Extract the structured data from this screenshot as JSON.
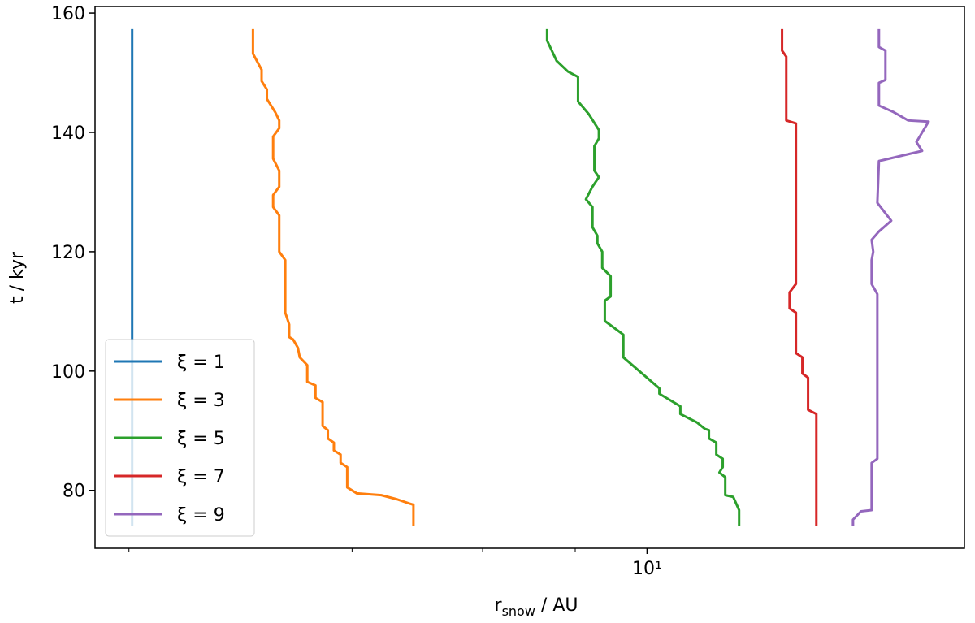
{
  "chart_data": {
    "type": "line",
    "xlabel": [
      "r",
      "snow",
      " / AU"
    ],
    "ylabel": "t / kyr",
    "xscale": "log",
    "xlim": [
      1.8,
      26.8
    ],
    "ylim": [
      70.3,
      161.1
    ],
    "xticks": [
      {
        "value": 10,
        "label": "10¹"
      }
    ],
    "xminorticks": [
      2,
      4,
      6,
      8
    ],
    "yticks": [
      80,
      100,
      120,
      140,
      160
    ],
    "legend": "lower left",
    "series": [
      {
        "name": "ξ = 1",
        "color": "#1f77b4",
        "x": [
          2.02,
          2.02
        ],
        "y": [
          74.0,
          157.3
        ]
      },
      {
        "name": "ξ = 3",
        "color": "#ff7f0e",
        "x": [
          2.94,
          2.94,
          3.02,
          3.02,
          3.07,
          3.07,
          3.15,
          3.19,
          3.19,
          3.13,
          3.13,
          3.19,
          3.19,
          3.13,
          3.13,
          3.19,
          3.19,
          3.25,
          3.25,
          3.29,
          3.29,
          3.33,
          3.38,
          3.4,
          3.48,
          3.48,
          3.57,
          3.57,
          3.65,
          3.65,
          3.71,
          3.71,
          3.78,
          3.78,
          3.86,
          3.86,
          3.94,
          3.94,
          4.06,
          4.38,
          4.6,
          4.78,
          4.84,
          4.84
        ],
        "y": [
          157.3,
          153.2,
          150.5,
          148.6,
          147.2,
          145.6,
          143.4,
          142.0,
          140.7,
          139.3,
          135.6,
          133.6,
          130.9,
          129.5,
          127.5,
          126.1,
          120.0,
          118.6,
          109.8,
          107.8,
          105.7,
          105.3,
          103.9,
          102.3,
          101.0,
          98.2,
          97.6,
          95.5,
          94.8,
          90.8,
          90.1,
          88.7,
          88.0,
          86.7,
          86.0,
          84.6,
          83.9,
          80.5,
          79.5,
          79.2,
          78.5,
          77.8,
          77.6,
          74.0
        ]
      },
      {
        "name": "ξ = 5",
        "color": "#2ca02c",
        "x": [
          7.33,
          7.33,
          7.55,
          7.82,
          8.07,
          8.07,
          8.34,
          8.61,
          8.61,
          8.49,
          8.49,
          8.61,
          8.44,
          8.27,
          8.44,
          8.44,
          8.57,
          8.57,
          8.7,
          8.7,
          8.93,
          8.93,
          8.77,
          8.77,
          9.29,
          9.29,
          10.39,
          10.39,
          11.09,
          11.09,
          11.67,
          11.97,
          12.12,
          12.12,
          12.4,
          12.4,
          12.65,
          12.65,
          12.52,
          12.75,
          12.75,
          13.07,
          13.31,
          13.31
        ],
        "y": [
          157.3,
          155.4,
          152.0,
          150.2,
          149.3,
          145.2,
          143.1,
          140.4,
          139.0,
          137.7,
          133.6,
          132.5,
          130.9,
          128.8,
          127.5,
          124.1,
          122.7,
          121.4,
          120.0,
          117.3,
          115.9,
          112.5,
          111.8,
          108.4,
          106.1,
          102.3,
          97.1,
          96.2,
          94.1,
          92.8,
          91.4,
          90.3,
          90.1,
          88.7,
          88.0,
          86.0,
          85.3,
          83.9,
          83.0,
          82.2,
          79.2,
          78.9,
          76.7,
          74.0
        ]
      },
      {
        "name": "ξ = 7",
        "color": "#d62728",
        "x": [
          15.21,
          15.21,
          15.41,
          15.41,
          15.88,
          15.88,
          15.57,
          15.57,
          15.88,
          15.88,
          16.2,
          16.2,
          16.49,
          16.49,
          16.92,
          16.92
        ],
        "y": [
          157.3,
          153.7,
          152.7,
          142.0,
          141.5,
          114.6,
          113.2,
          110.5,
          109.8,
          103.0,
          102.3,
          99.6,
          98.9,
          93.5,
          92.8,
          74.0
        ]
      },
      {
        "name": "ξ = 9",
        "color": "#9467bd",
        "x": [
          20.55,
          20.55,
          20.97,
          20.97,
          20.55,
          20.55,
          21.51,
          22.51,
          23.98,
          23.09,
          23.5,
          20.55,
          20.45,
          21.35,
          20.55,
          20.09,
          20.19,
          20.09,
          20.09,
          20.45,
          20.45,
          20.09,
          20.09,
          19.44,
          18.96,
          18.96
        ],
        "y": [
          157.3,
          154.3,
          153.7,
          148.8,
          148.3,
          144.5,
          143.4,
          142.0,
          141.8,
          138.4,
          136.9,
          135.2,
          128.2,
          125.2,
          123.4,
          122.0,
          120.0,
          118.6,
          114.6,
          112.9,
          85.3,
          84.6,
          76.7,
          76.5,
          75.1,
          74.0
        ]
      }
    ]
  }
}
